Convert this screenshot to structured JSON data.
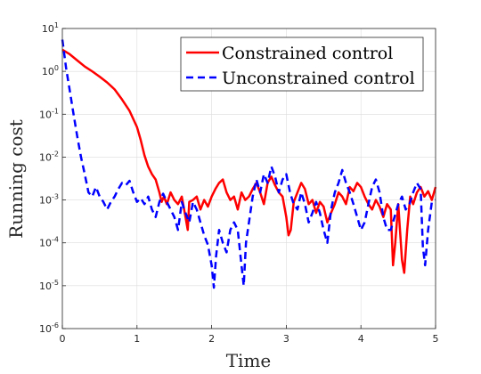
{
  "chart_data": {
    "type": "line",
    "xlabel": "Time",
    "ylabel": "Running cost",
    "xlim": [
      0,
      5
    ],
    "ylim": [
      1e-06,
      10
    ],
    "yscale": "log",
    "grid": true,
    "legend_position": "top-right",
    "x_ticks": [
      "0",
      "1",
      "2",
      "3",
      "4",
      "5"
    ],
    "y_ticks": [
      {
        "base": "10",
        "exp": "-6",
        "value": 1e-06
      },
      {
        "base": "10",
        "exp": "-5",
        "value": 1e-05
      },
      {
        "base": "10",
        "exp": "-4",
        "value": 0.0001
      },
      {
        "base": "10",
        "exp": "-3",
        "value": 0.001
      },
      {
        "base": "10",
        "exp": "-2",
        "value": 0.01
      },
      {
        "base": "10",
        "exp": "-1",
        "value": 0.1
      },
      {
        "base": "10",
        "exp": "0",
        "value": 1
      },
      {
        "base": "10",
        "exp": "1",
        "value": 10
      }
    ],
    "series": [
      {
        "name": "Constrained control",
        "color": "#ff0000",
        "style": "solid",
        "x": [
          0,
          0.1,
          0.2,
          0.3,
          0.4,
          0.5,
          0.6,
          0.7,
          0.8,
          0.9,
          1.0,
          1.05,
          1.1,
          1.15,
          1.2,
          1.25,
          1.3,
          1.33,
          1.36,
          1.4,
          1.45,
          1.5,
          1.55,
          1.6,
          1.65,
          1.68,
          1.7,
          1.75,
          1.8,
          1.85,
          1.9,
          1.95,
          2.0,
          2.05,
          2.1,
          2.15,
          2.2,
          2.25,
          2.3,
          2.35,
          2.4,
          2.45,
          2.5,
          2.55,
          2.6,
          2.65,
          2.7,
          2.75,
          2.8,
          2.85,
          2.9,
          2.95,
          3.0,
          3.03,
          3.06,
          3.1,
          3.15,
          3.2,
          3.25,
          3.3,
          3.35,
          3.4,
          3.45,
          3.5,
          3.55,
          3.6,
          3.65,
          3.7,
          3.75,
          3.8,
          3.85,
          3.9,
          3.95,
          4.0,
          4.05,
          4.1,
          4.15,
          4.2,
          4.25,
          4.3,
          4.35,
          4.4,
          4.43,
          4.46,
          4.5,
          4.55,
          4.58,
          4.62,
          4.66,
          4.7,
          4.75,
          4.8,
          4.85,
          4.9,
          4.95,
          5.0
        ],
        "y": [
          3.2,
          2.5,
          1.8,
          1.3,
          1.0,
          0.75,
          0.55,
          0.38,
          0.22,
          0.12,
          0.05,
          0.025,
          0.011,
          0.006,
          0.004,
          0.003,
          0.0015,
          0.0009,
          0.0012,
          0.0008,
          0.0015,
          0.001,
          0.0008,
          0.0012,
          0.0004,
          0.0002,
          0.0009,
          0.001,
          0.0012,
          0.0006,
          0.001,
          0.0007,
          0.0012,
          0.0018,
          0.0025,
          0.003,
          0.0015,
          0.001,
          0.0012,
          0.0006,
          0.0015,
          0.001,
          0.0012,
          0.0018,
          0.0025,
          0.0015,
          0.0008,
          0.0025,
          0.0035,
          0.0022,
          0.0015,
          0.0012,
          0.0004,
          0.00015,
          0.0002,
          0.0009,
          0.0015,
          0.0025,
          0.0018,
          0.0008,
          0.001,
          0.0005,
          0.0009,
          0.0007,
          0.0003,
          0.0005,
          0.0008,
          0.0015,
          0.0012,
          0.0008,
          0.002,
          0.0016,
          0.0025,
          0.002,
          0.0012,
          0.0008,
          0.0006,
          0.001,
          0.0007,
          0.0004,
          0.0008,
          0.0006,
          3e-05,
          0.0001,
          0.0008,
          4e-05,
          2e-05,
          0.0002,
          0.0012,
          0.0008,
          0.0015,
          0.002,
          0.0012,
          0.0016,
          0.001,
          0.002
        ]
      },
      {
        "name": "Unconstrained control",
        "color": "#0000ff",
        "style": "dashed",
        "x": [
          0,
          0.05,
          0.1,
          0.15,
          0.2,
          0.25,
          0.3,
          0.35,
          0.4,
          0.45,
          0.5,
          0.55,
          0.6,
          0.65,
          0.7,
          0.75,
          0.8,
          0.85,
          0.9,
          0.95,
          1.0,
          1.05,
          1.1,
          1.15,
          1.2,
          1.25,
          1.3,
          1.35,
          1.4,
          1.45,
          1.5,
          1.55,
          1.6,
          1.65,
          1.7,
          1.75,
          1.8,
          1.85,
          1.9,
          1.95,
          2.0,
          2.03,
          2.06,
          2.1,
          2.15,
          2.2,
          2.25,
          2.3,
          2.35,
          2.4,
          2.43,
          2.46,
          2.5,
          2.55,
          2.6,
          2.65,
          2.7,
          2.75,
          2.8,
          2.85,
          2.9,
          2.95,
          3.0,
          3.05,
          3.1,
          3.15,
          3.2,
          3.25,
          3.3,
          3.35,
          3.4,
          3.45,
          3.5,
          3.55,
          3.6,
          3.65,
          3.7,
          3.75,
          3.8,
          3.85,
          3.9,
          3.95,
          4.0,
          4.05,
          4.1,
          4.15,
          4.2,
          4.25,
          4.3,
          4.35,
          4.4,
          4.45,
          4.5,
          4.55,
          4.6,
          4.65,
          4.7,
          4.75,
          4.8,
          4.83,
          4.86,
          4.9,
          4.95,
          5.0
        ],
        "y": [
          5.5,
          1.2,
          0.35,
          0.1,
          0.03,
          0.01,
          0.004,
          0.0015,
          0.0012,
          0.002,
          0.0012,
          0.0009,
          0.0006,
          0.0009,
          0.0012,
          0.0018,
          0.0025,
          0.0022,
          0.0028,
          0.0015,
          0.0009,
          0.0011,
          0.0008,
          0.0012,
          0.0006,
          0.0004,
          0.0009,
          0.0014,
          0.0009,
          0.0006,
          0.0004,
          0.0002,
          0.0009,
          0.0005,
          0.0003,
          0.0009,
          0.0006,
          0.0003,
          0.00015,
          9e-05,
          3e-05,
          9e-06,
          5e-05,
          0.0002,
          0.0001,
          6e-05,
          0.0002,
          0.0003,
          0.0002,
          3e-05,
          1e-05,
          0.0001,
          0.0003,
          0.0012,
          0.003,
          0.0015,
          0.004,
          0.0025,
          0.006,
          0.0035,
          0.0015,
          0.003,
          0.004,
          0.0015,
          0.0008,
          0.0006,
          0.0015,
          0.0008,
          0.0003,
          0.0005,
          0.0009,
          0.0005,
          0.0002,
          0.0001,
          0.0006,
          0.0015,
          0.0025,
          0.005,
          0.0025,
          0.0015,
          0.0008,
          0.0004,
          0.0002,
          0.0003,
          0.0008,
          0.002,
          0.003,
          0.0015,
          0.0004,
          0.0002,
          0.0002,
          0.0004,
          0.0008,
          0.0012,
          0.0006,
          0.0008,
          0.0015,
          0.0025,
          0.0018,
          8e-05,
          3e-05,
          0.0002,
          0.0009,
          0.001
        ]
      }
    ]
  }
}
